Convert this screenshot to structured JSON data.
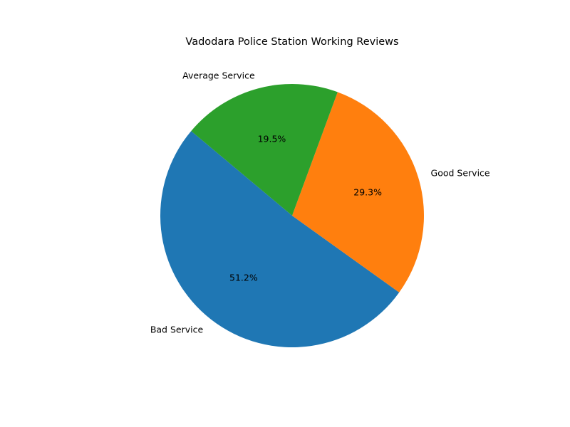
{
  "chart_data": {
    "type": "pie",
    "title": "Vadodara Police Station Working Reviews",
    "categories": [
      "Bad Service",
      "Good Service",
      "Average Service"
    ],
    "values": [
      51.2,
      29.3,
      19.5
    ],
    "percent_labels": [
      "51.2%",
      "29.3%",
      "19.5%"
    ],
    "colors": [
      "#1f77b4",
      "#ff7f0e",
      "#2ca02c"
    ],
    "start_angle_deg": 140,
    "direction": "counterclockwise"
  }
}
